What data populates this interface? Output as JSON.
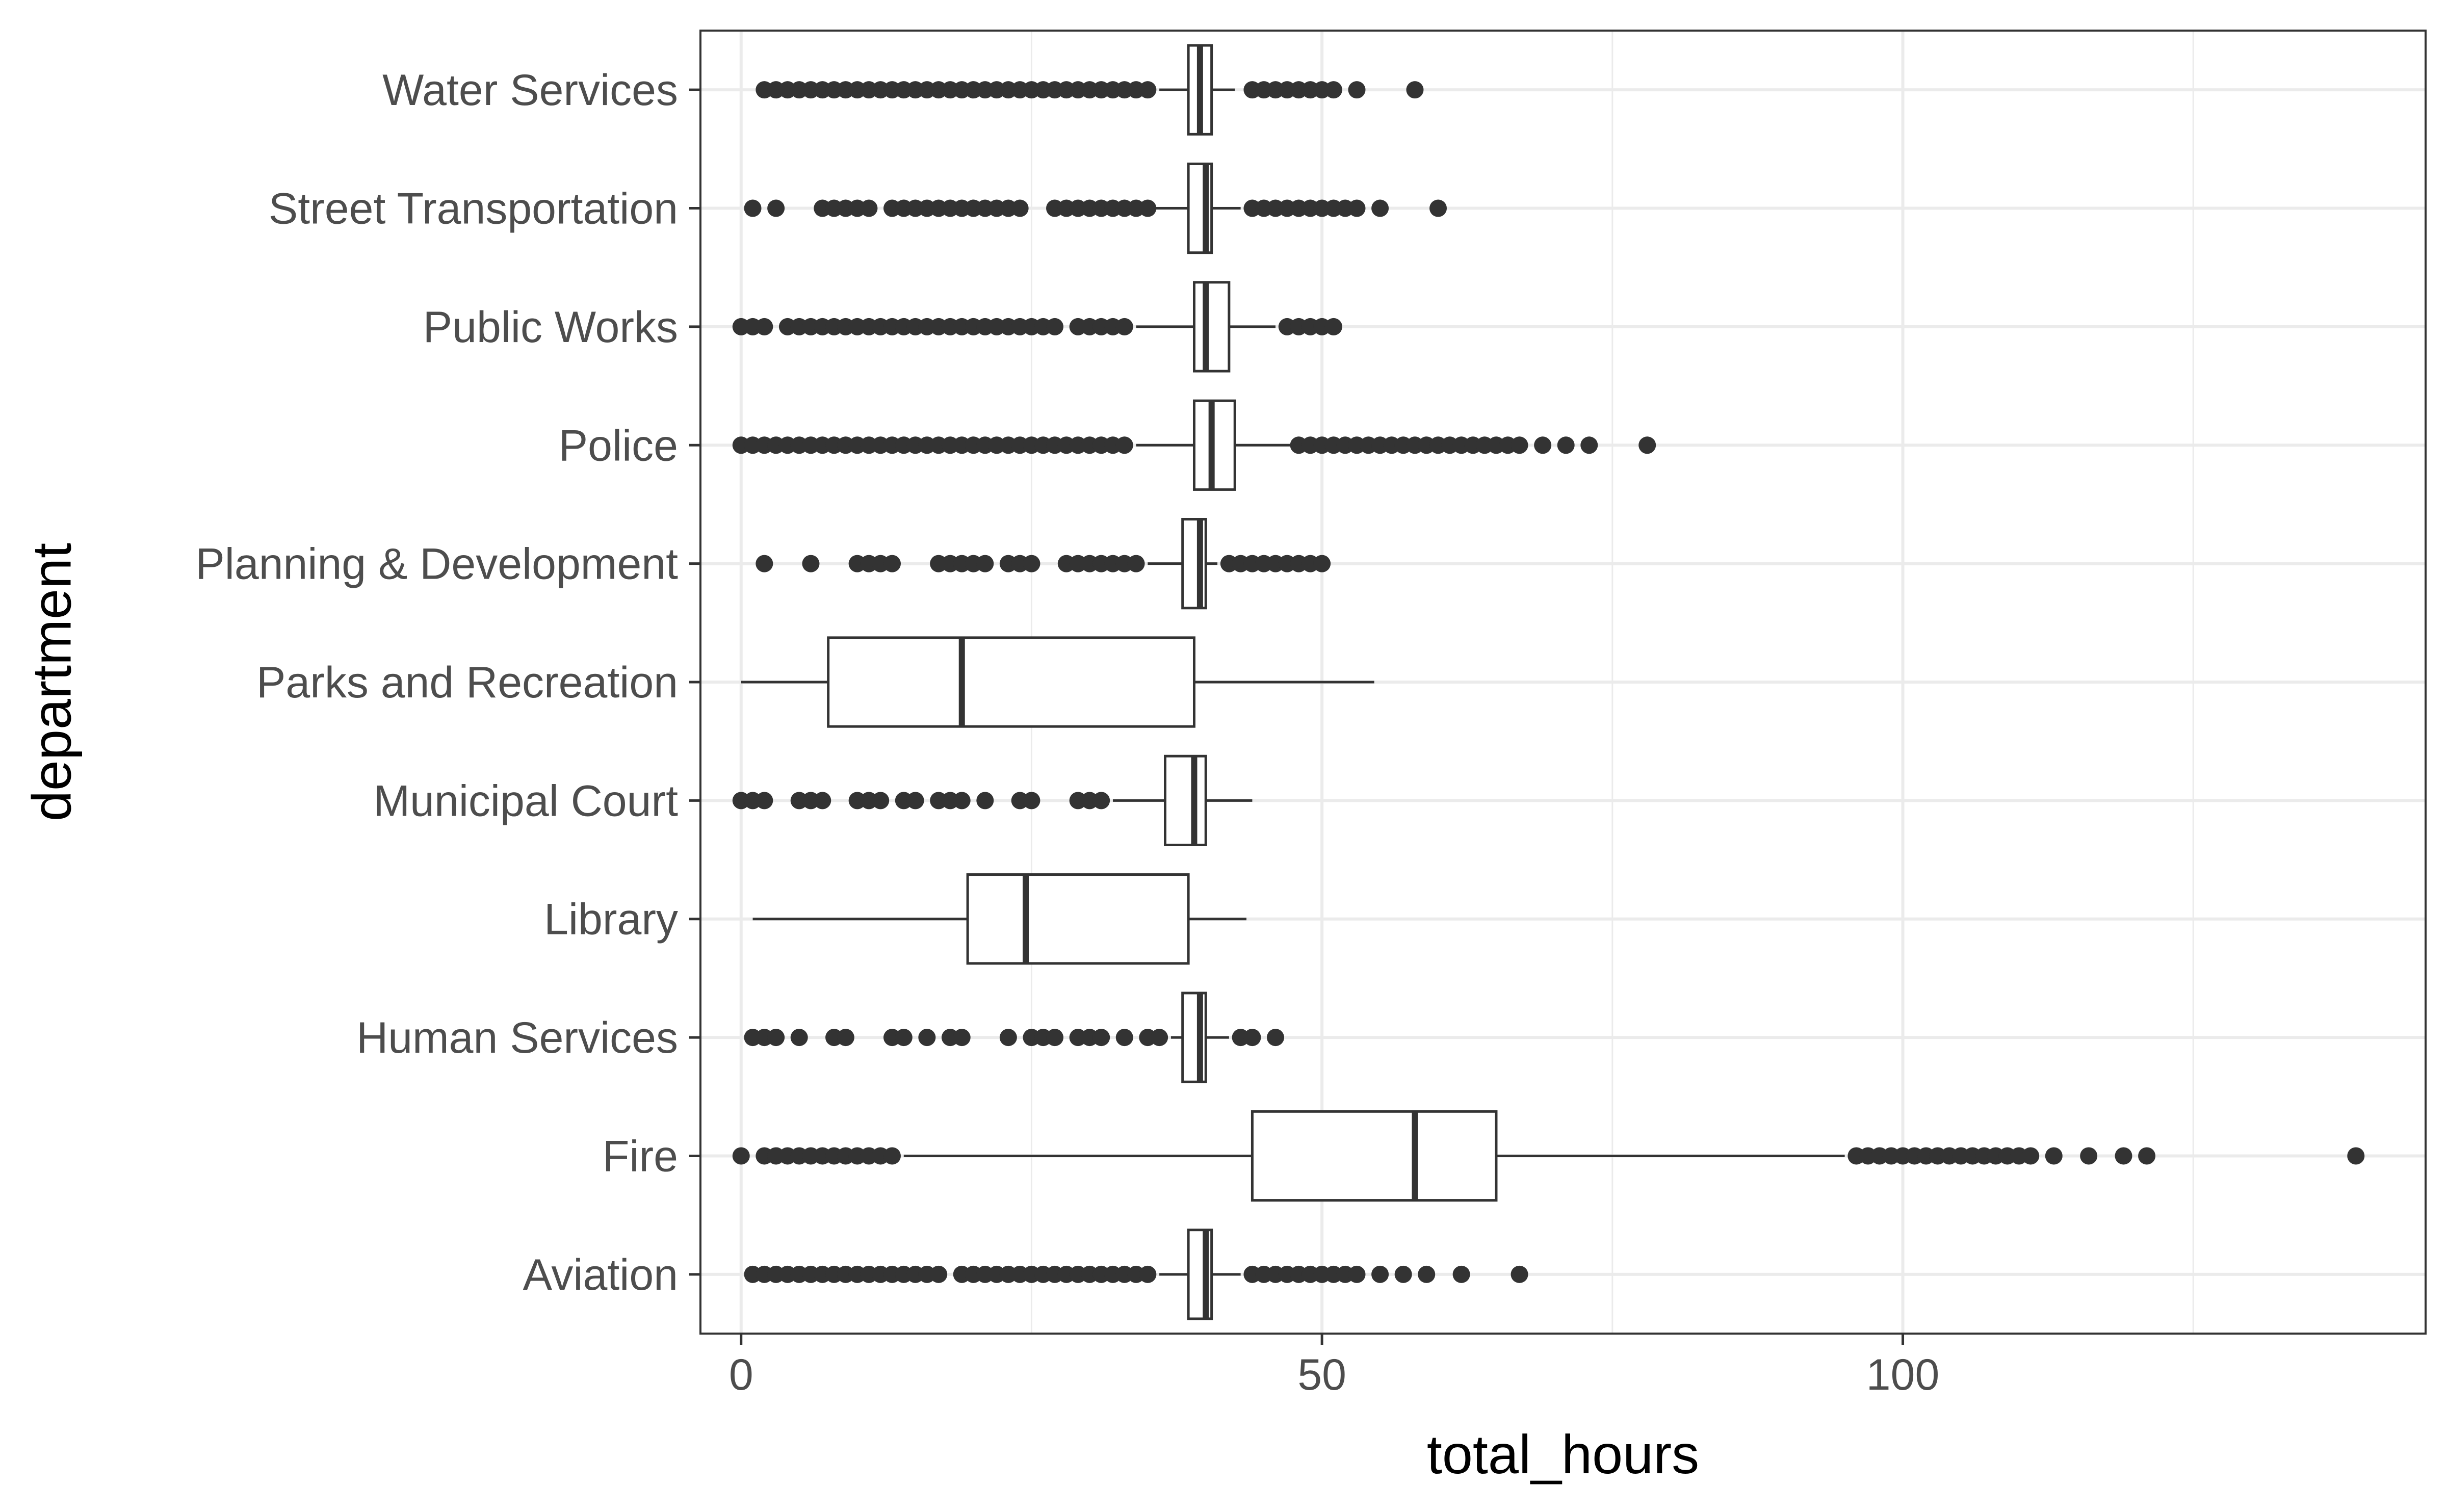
{
  "chart_data": {
    "type": "boxplot",
    "orientation": "horizontal",
    "title": "",
    "xlabel": "total_hours",
    "ylabel": "department",
    "xlim": [
      -3.5,
      145
    ],
    "xticks": [
      0,
      50,
      100
    ],
    "xtick_labels": [
      "0",
      "50",
      "100"
    ],
    "x_minor_gridlines": [
      25,
      75,
      125
    ],
    "grid": true,
    "theme": "bw",
    "colors": {
      "box_fill": "#ffffff",
      "stroke": "#333333",
      "outlier": "#333333",
      "grid": "#ebebeb",
      "panel_border": "#333333"
    },
    "categories": [
      "Aviation",
      "Fire",
      "Human Services",
      "Library",
      "Municipal Court",
      "Parks and Recreation",
      "Planning & Development",
      "Police",
      "Public Works",
      "Street Transportation",
      "Water Services"
    ],
    "boxes": [
      {
        "label": "Aviation",
        "whisker_low": 36,
        "q1": 38.5,
        "median": 40,
        "q3": 40.5,
        "whisker_high": 43,
        "outliers": [
          1,
          2,
          3,
          4,
          5,
          6,
          7,
          8,
          9,
          10,
          11,
          12,
          13,
          14,
          15,
          16,
          17,
          19,
          20,
          21,
          22,
          23,
          24,
          25,
          26,
          27,
          28,
          29,
          30,
          31,
          32,
          33,
          34,
          35,
          44,
          45,
          46,
          47,
          48,
          49,
          50,
          51,
          52,
          53,
          55,
          57,
          59,
          62,
          67
        ]
      },
      {
        "label": "Fire",
        "whisker_low": 14,
        "q1": 44,
        "median": 58,
        "q3": 65,
        "whisker_high": 95,
        "outliers": [
          0,
          2,
          3,
          4,
          5,
          6,
          7,
          8,
          9,
          10,
          11,
          12,
          13,
          96,
          97,
          98,
          99,
          100,
          101,
          102,
          103,
          104,
          105,
          106,
          107,
          108,
          109,
          110,
          111,
          113,
          116,
          119,
          121,
          139
        ]
      },
      {
        "label": "Human Services",
        "whisker_low": 37,
        "q1": 38,
        "median": 39.5,
        "q3": 40,
        "whisker_high": 42,
        "outliers": [
          1,
          2,
          3,
          5,
          8,
          9,
          13,
          14,
          16,
          18,
          19,
          23,
          25,
          26,
          27,
          29,
          30,
          31,
          33,
          35,
          36,
          43,
          44,
          46
        ]
      },
      {
        "label": "Library",
        "whisker_low": 1,
        "q1": 19.5,
        "median": 24.5,
        "q3": 38.5,
        "whisker_high": 43.5,
        "outliers": []
      },
      {
        "label": "Municipal Court",
        "whisker_low": 32,
        "q1": 36.5,
        "median": 39,
        "q3": 40,
        "whisker_high": 44,
        "outliers": [
          0,
          1,
          2,
          5,
          6,
          7,
          10,
          11,
          12,
          14,
          15,
          17,
          18,
          19,
          21,
          24,
          25,
          29,
          30,
          31
        ]
      },
      {
        "label": "Parks and Recreation",
        "whisker_low": 0,
        "q1": 7.5,
        "median": 19,
        "q3": 39,
        "whisker_high": 54.5,
        "outliers": []
      },
      {
        "label": "Planning & Development",
        "whisker_low": 35,
        "q1": 38,
        "median": 39.5,
        "q3": 40,
        "whisker_high": 41,
        "outliers": [
          2,
          6,
          10,
          11,
          12,
          13,
          17,
          18,
          19,
          20,
          21,
          23,
          24,
          25,
          28,
          29,
          30,
          31,
          32,
          33,
          34,
          42,
          43,
          44,
          45,
          46,
          47,
          48,
          49,
          50
        ]
      },
      {
        "label": "Police",
        "whisker_low": 34,
        "q1": 39,
        "median": 40.5,
        "q3": 42.5,
        "whisker_high": 47.5,
        "outliers": [
          0,
          1,
          2,
          3,
          4,
          5,
          6,
          7,
          8,
          9,
          10,
          11,
          12,
          13,
          14,
          15,
          16,
          17,
          18,
          19,
          20,
          21,
          22,
          23,
          24,
          25,
          26,
          27,
          28,
          29,
          30,
          31,
          32,
          33,
          48,
          49,
          50,
          51,
          52,
          53,
          54,
          55,
          56,
          57,
          58,
          59,
          60,
          61,
          62,
          63,
          64,
          65,
          66,
          67,
          69,
          71,
          73,
          78
        ]
      },
      {
        "label": "Public Works",
        "whisker_low": 34,
        "q1": 39,
        "median": 40,
        "q3": 42,
        "whisker_high": 46,
        "outliers": [
          0,
          1,
          2,
          4,
          5,
          6,
          7,
          8,
          9,
          10,
          11,
          12,
          13,
          14,
          15,
          16,
          17,
          18,
          19,
          20,
          21,
          22,
          23,
          24,
          25,
          26,
          27,
          29,
          30,
          31,
          32,
          33,
          47,
          48,
          49,
          50,
          51
        ]
      },
      {
        "label": "Street Transportation",
        "whisker_low": 35,
        "q1": 38.5,
        "median": 40,
        "q3": 40.5,
        "whisker_high": 43,
        "outliers": [
          1,
          3,
          7,
          8,
          9,
          10,
          11,
          13,
          14,
          15,
          16,
          17,
          18,
          19,
          20,
          21,
          22,
          23,
          24,
          27,
          28,
          29,
          30,
          31,
          32,
          33,
          34,
          35,
          44,
          45,
          46,
          47,
          48,
          49,
          50,
          51,
          52,
          53,
          55,
          60
        ]
      },
      {
        "label": "Water Services",
        "whisker_low": 36,
        "q1": 38.5,
        "median": 39.5,
        "q3": 40.5,
        "whisker_high": 42.5,
        "outliers": [
          2,
          3,
          4,
          5,
          6,
          7,
          8,
          9,
          10,
          11,
          12,
          13,
          14,
          15,
          16,
          17,
          18,
          19,
          20,
          21,
          22,
          23,
          24,
          25,
          26,
          27,
          28,
          29,
          30,
          31,
          32,
          33,
          34,
          35,
          44,
          45,
          46,
          47,
          48,
          49,
          50,
          51,
          53,
          58
        ]
      }
    ]
  }
}
